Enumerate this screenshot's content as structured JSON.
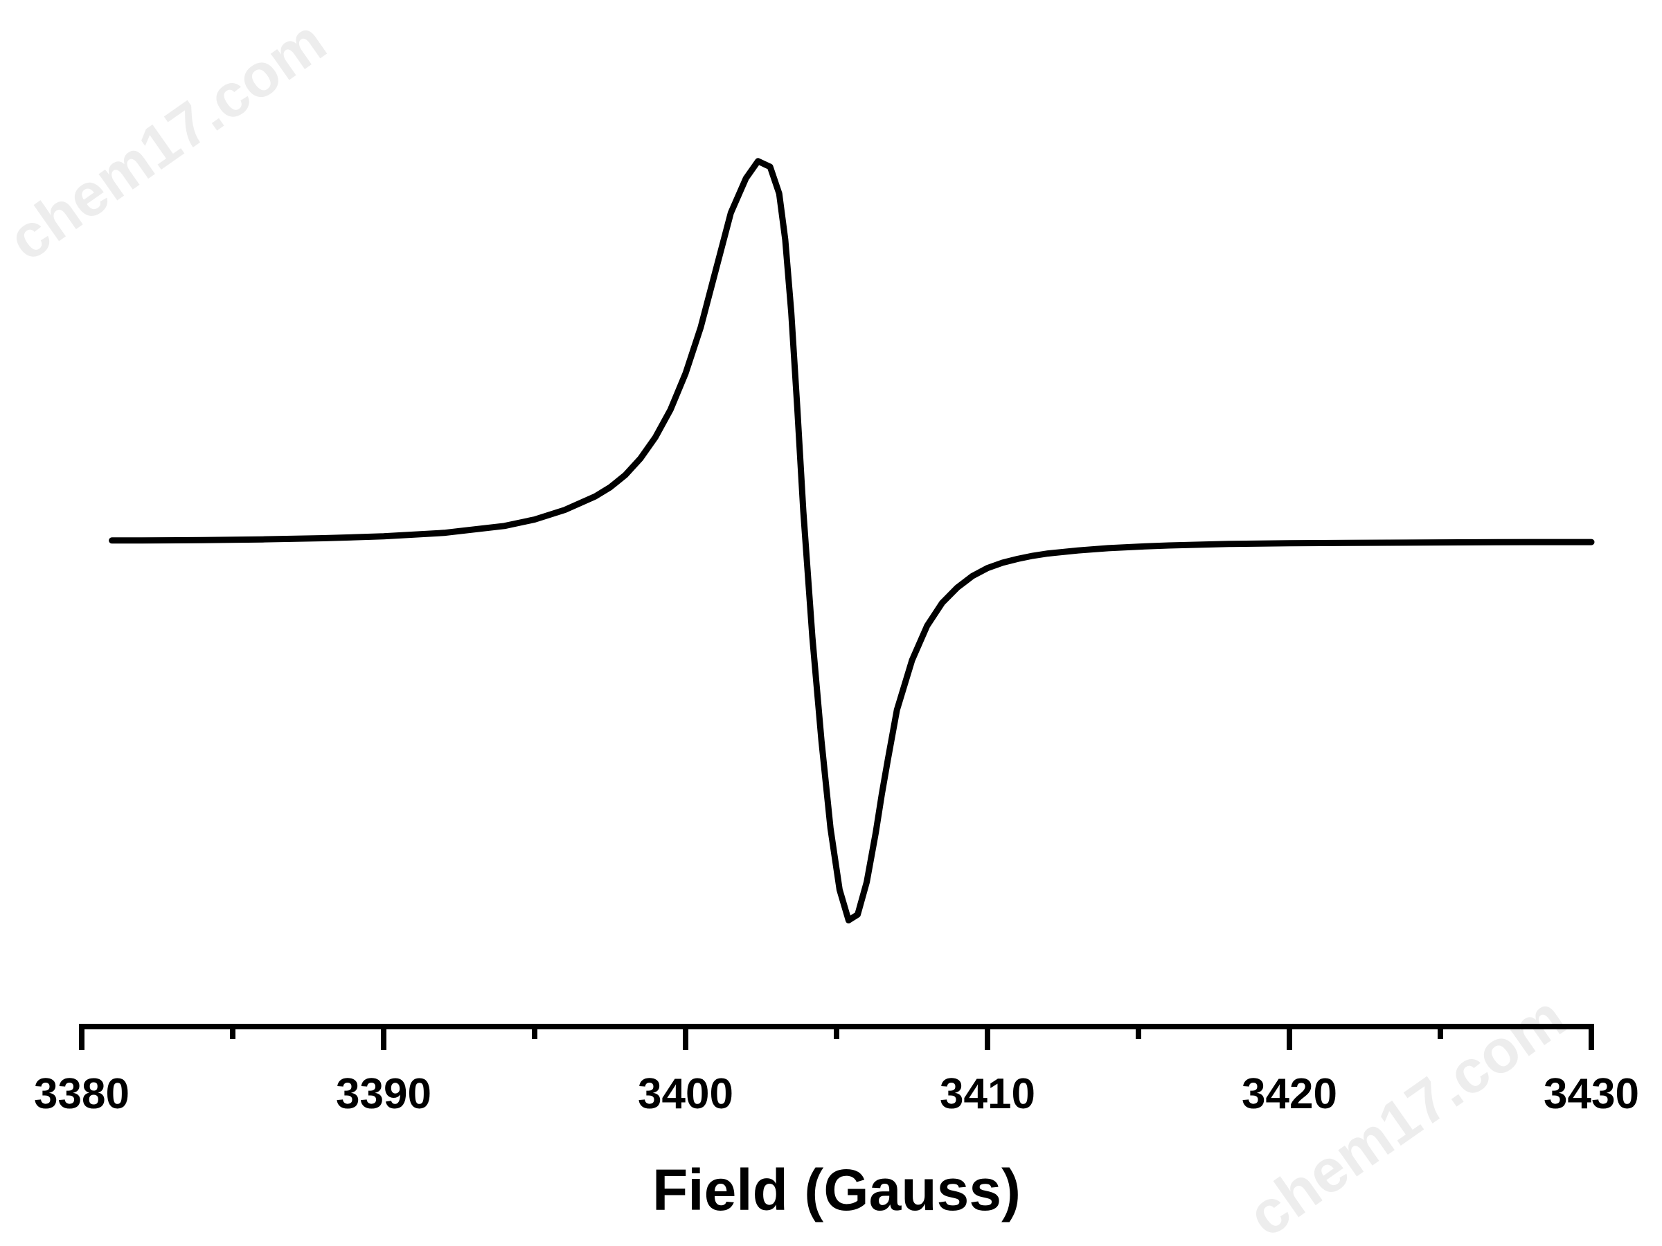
{
  "watermark_text": "chem17.com",
  "chart_data": {
    "type": "line",
    "title": "",
    "xlabel": "Field (Gauss)",
    "ylabel": "",
    "xlim": [
      3380,
      3430
    ],
    "ylim": [
      -1.0,
      1.0
    ],
    "x_ticks": [
      3380,
      3390,
      3400,
      3410,
      3420,
      3430
    ],
    "x_minor_ticks": [
      3385,
      3395,
      3405,
      3415,
      3425
    ],
    "show_y_axis": false,
    "grid": false,
    "line_color": "#000000",
    "series": [
      {
        "x": [
          3381,
          3382,
          3384,
          3386,
          3388,
          3390,
          3392,
          3394,
          3395,
          3396,
          3397,
          3397.5,
          3398,
          3398.5,
          3399,
          3399.5,
          3400,
          3400.5,
          3401,
          3401.5,
          3402,
          3402.4,
          3402.8,
          3403.1,
          3403.3,
          3403.5,
          3403.7,
          3403.9,
          3404.2,
          3404.5,
          3404.8,
          3405.1,
          3405.4,
          3405.7,
          3406.0,
          3406.3,
          3406.5,
          3406.7,
          3407.0,
          3407.5,
          3408,
          3408.5,
          3409,
          3409.5,
          3410,
          3410.5,
          3411,
          3411.5,
          3412,
          3413,
          3414,
          3415,
          3416,
          3418,
          3420,
          3422,
          3425,
          3428,
          3430
        ],
        "y": [
          0.003,
          0.003,
          0.004,
          0.006,
          0.009,
          0.014,
          0.023,
          0.041,
          0.058,
          0.083,
          0.118,
          0.142,
          0.174,
          0.217,
          0.273,
          0.345,
          0.44,
          0.56,
          0.71,
          0.86,
          0.95,
          0.995,
          0.98,
          0.91,
          0.79,
          0.6,
          0.35,
          0.08,
          -0.25,
          -0.52,
          -0.75,
          -0.91,
          -0.99,
          -0.975,
          -0.89,
          -0.76,
          -0.66,
          -0.57,
          -0.44,
          -0.31,
          -0.22,
          -0.16,
          -0.12,
          -0.09,
          -0.069,
          -0.055,
          -0.045,
          -0.037,
          -0.031,
          -0.023,
          -0.017,
          -0.013,
          -0.01,
          -0.006,
          -0.004,
          -0.003,
          -0.002,
          -0.001,
          -0.001
        ]
      }
    ]
  }
}
